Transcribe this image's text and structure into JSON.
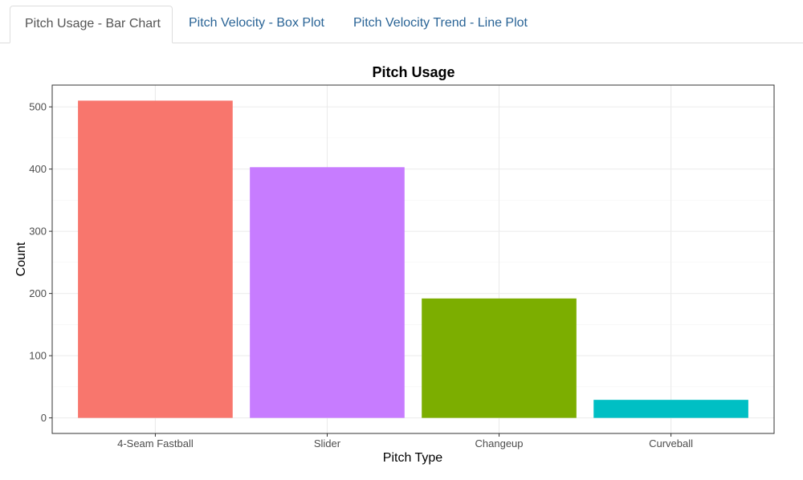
{
  "tabs": [
    {
      "label": "Pitch Usage - Bar Chart",
      "active": true
    },
    {
      "label": "Pitch Velocity - Box Plot",
      "active": false
    },
    {
      "label": "Pitch Velocity Trend - Line Plot",
      "active": false
    }
  ],
  "colors": {
    "active_tab_text": "#555555",
    "inactive_tab_text": "#2a6496",
    "grid": "#ebebeb",
    "panel_border": "#333333"
  },
  "chart_data": {
    "type": "bar",
    "title": "Pitch Usage",
    "xlabel": "Pitch Type",
    "ylabel": "Count",
    "categories": [
      "4-Seam Fastball",
      "Slider",
      "Changeup",
      "Curveball"
    ],
    "values": [
      510,
      403,
      192,
      29
    ],
    "colors": [
      "#F8766D",
      "#C77CFF",
      "#7CAE00",
      "#00BFC4"
    ],
    "ylim": [
      -25,
      535
    ],
    "yticks": [
      0,
      100,
      200,
      300,
      400,
      500
    ],
    "grid": true,
    "legend": "none"
  }
}
